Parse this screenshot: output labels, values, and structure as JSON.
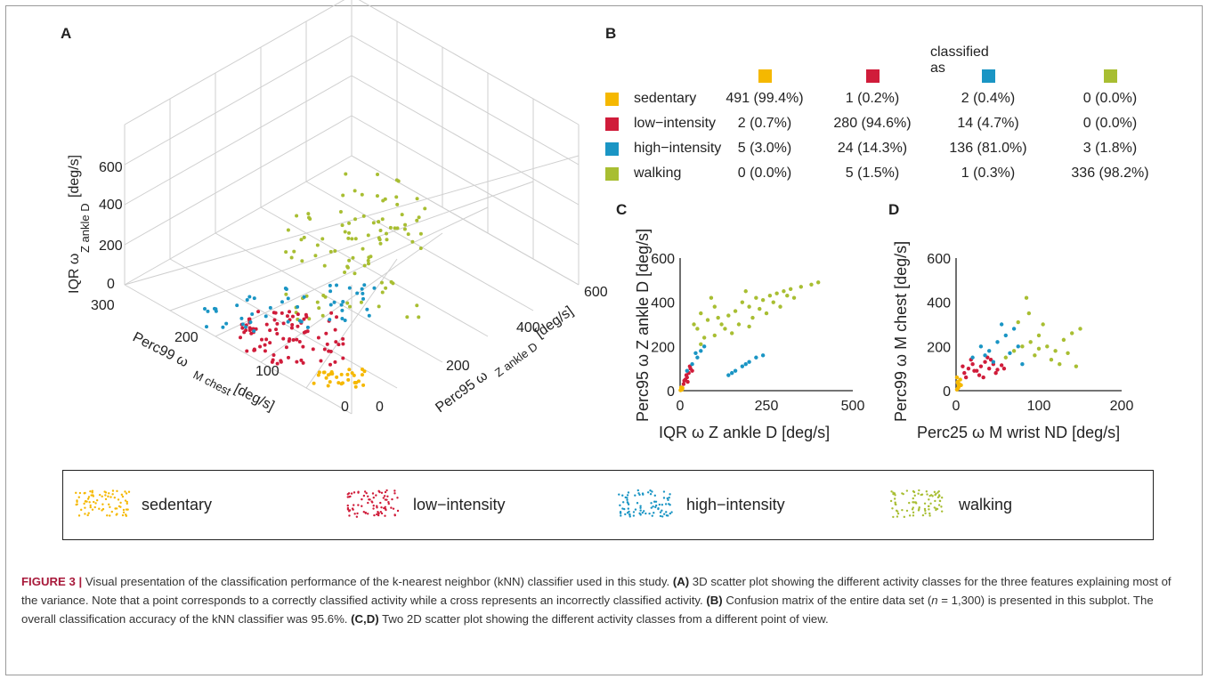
{
  "panels": {
    "a": "A",
    "b": "B",
    "c": "C",
    "d": "D"
  },
  "colors": {
    "sedentary": "#f5b800",
    "low_intensity": "#d01c3a",
    "high_intensity": "#1a95c4",
    "walking": "#a8be32"
  },
  "panel_a": {
    "zlabel": "IQR ω",
    "zlabel_sub": "Z ankle D",
    "zlabel_unit": "[deg/s]",
    "xlabel": "Perc99 ω",
    "xlabel_sub": "M chest",
    "xlabel_unit": "[deg/s]",
    "ylabel": "Perc95 ω",
    "ylabel_sub": "Z ankle D",
    "ylabel_unit": "[deg/s]",
    "zticks": [
      "600",
      "400",
      "200",
      "0"
    ],
    "xticks": [
      "300",
      "200",
      "100",
      "0"
    ],
    "yticks": [
      "0",
      "200",
      "400",
      "600"
    ]
  },
  "confusion_matrix": {
    "header": "classified as",
    "classes": [
      "sedentary",
      "low−intensity",
      "high−intensity",
      "walking"
    ],
    "rows": [
      [
        "491 (99.4%)",
        "1 (0.2%)",
        "2 (0.4%)",
        "0 (0.0%)"
      ],
      [
        "2 (0.7%)",
        "280 (94.6%)",
        "14 (4.7%)",
        "0 (0.0%)"
      ],
      [
        "5 (3.0%)",
        "24 (14.3%)",
        "136 (81.0%)",
        "3 (1.8%)"
      ],
      [
        "0 (0.0%)",
        "5 (1.5%)",
        "1 (0.3%)",
        "336 (98.2%)"
      ]
    ]
  },
  "chart_data": [
    {
      "type": "scatter",
      "panel": "C",
      "xlabel": "IQR ω Z ankle D [deg/s]",
      "ylabel": "Perc95 ω Z ankle D [deg/s]",
      "xlim": [
        0,
        500
      ],
      "ylim": [
        0,
        600
      ],
      "xticks": [
        "0",
        "250",
        "500"
      ],
      "yticks": [
        "0",
        "200",
        "400",
        "600"
      ],
      "series": [
        {
          "name": "sedentary",
          "points": [
            [
              2,
              3
            ],
            [
              4,
              6
            ],
            [
              3,
              10
            ],
            [
              6,
              8
            ],
            [
              1,
              2
            ],
            [
              5,
              4
            ],
            [
              7,
              12
            ],
            [
              3,
              15
            ]
          ]
        },
        {
          "name": "low−intensity",
          "points": [
            [
              10,
              30
            ],
            [
              15,
              50
            ],
            [
              20,
              60
            ],
            [
              25,
              80
            ],
            [
              30,
              100
            ],
            [
              12,
              45
            ],
            [
              18,
              70
            ],
            [
              22,
              40
            ],
            [
              35,
              90
            ],
            [
              28,
              110
            ]
          ]
        },
        {
          "name": "high−intensity",
          "points": [
            [
              20,
              90
            ],
            [
              35,
              120
            ],
            [
              50,
              150
            ],
            [
              60,
              180
            ],
            [
              140,
              70
            ],
            [
              160,
              90
            ],
            [
              180,
              110
            ],
            [
              200,
              130
            ],
            [
              220,
              150
            ],
            [
              240,
              160
            ],
            [
              150,
              80
            ],
            [
              190,
              120
            ],
            [
              45,
              170
            ],
            [
              70,
              200
            ]
          ]
        },
        {
          "name": "walking",
          "points": [
            [
              40,
              300
            ],
            [
              60,
              350
            ],
            [
              80,
              320
            ],
            [
              100,
              380
            ],
            [
              120,
              300
            ],
            [
              140,
              340
            ],
            [
              160,
              360
            ],
            [
              180,
              400
            ],
            [
              200,
              380
            ],
            [
              220,
              420
            ],
            [
              240,
              410
            ],
            [
              260,
              430
            ],
            [
              280,
              440
            ],
            [
              300,
              450
            ],
            [
              320,
              460
            ],
            [
              350,
              470
            ],
            [
              380,
              480
            ],
            [
              400,
              490
            ],
            [
              100,
              250
            ],
            [
              130,
              280
            ],
            [
              170,
              300
            ],
            [
              210,
              330
            ],
            [
              250,
              350
            ],
            [
              290,
              380
            ],
            [
              330,
              420
            ],
            [
              70,
              240
            ],
            [
              90,
              420
            ],
            [
              50,
              280
            ],
            [
              150,
              260
            ],
            [
              230,
              370
            ],
            [
              270,
              400
            ],
            [
              310,
              430
            ],
            [
              190,
              450
            ],
            [
              110,
              330
            ],
            [
              60,
              210
            ],
            [
              200,
              290
            ]
          ]
        }
      ]
    },
    {
      "type": "scatter",
      "panel": "D",
      "xlabel": "Perc25 ω M wrist ND [deg/s]",
      "ylabel": "Perc99 ω M chest [deg/s]",
      "xlim": [
        0,
        200
      ],
      "ylim": [
        0,
        600
      ],
      "xticks": [
        "0",
        "100",
        "200"
      ],
      "yticks": [
        "0",
        "200",
        "400",
        "600"
      ],
      "series": [
        {
          "name": "sedentary",
          "points": [
            [
              1,
              5
            ],
            [
              2,
              10
            ],
            [
              3,
              20
            ],
            [
              4,
              30
            ],
            [
              2,
              40
            ],
            [
              5,
              50
            ],
            [
              1,
              60
            ],
            [
              3,
              15
            ],
            [
              6,
              25
            ],
            [
              2,
              35
            ]
          ]
        },
        {
          "name": "low−intensity",
          "points": [
            [
              10,
              80
            ],
            [
              15,
              100
            ],
            [
              20,
              120
            ],
            [
              25,
              90
            ],
            [
              30,
              110
            ],
            [
              35,
              130
            ],
            [
              40,
              100
            ],
            [
              45,
              120
            ],
            [
              50,
              95
            ],
            [
              55,
              115
            ],
            [
              12,
              60
            ],
            [
              18,
              140
            ],
            [
              28,
              70
            ],
            [
              38,
              150
            ],
            [
              48,
              80
            ],
            [
              8,
              110
            ],
            [
              22,
              90
            ],
            [
              33,
              60
            ],
            [
              42,
              140
            ],
            [
              58,
              100
            ]
          ]
        },
        {
          "name": "high−intensity",
          "points": [
            [
              20,
              150
            ],
            [
              30,
              200
            ],
            [
              40,
              180
            ],
            [
              50,
              220
            ],
            [
              60,
              250
            ],
            [
              70,
              280
            ],
            [
              65,
              170
            ],
            [
              55,
              300
            ],
            [
              45,
              130
            ],
            [
              35,
              160
            ],
            [
              75,
              200
            ],
            [
              80,
              120
            ]
          ]
        },
        {
          "name": "walking",
          "points": [
            [
              60,
              150
            ],
            [
              70,
              180
            ],
            [
              80,
              200
            ],
            [
              90,
              220
            ],
            [
              100,
              250
            ],
            [
              110,
              200
            ],
            [
              120,
              180
            ],
            [
              130,
              230
            ],
            [
              140,
              260
            ],
            [
              150,
              280
            ],
            [
              85,
              420
            ],
            [
              95,
              160
            ],
            [
              105,
              300
            ],
            [
              115,
              140
            ],
            [
              125,
              120
            ],
            [
              135,
              170
            ],
            [
              145,
              110
            ],
            [
              75,
              310
            ],
            [
              88,
              350
            ],
            [
              100,
              190
            ]
          ]
        }
      ]
    }
  ],
  "legend": [
    "sedentary",
    "low−intensity",
    "high−intensity",
    "walking"
  ],
  "caption": {
    "label": "FIGURE 3 |",
    "t1": "Visual presentation of the classification performance of the k-nearest neighbor (kNN) classifier used in this study.",
    "a": "(A)",
    "t2": "3D scatter plot showing the different activity classes for the three features explaining most of the variance. Note that a point corresponds to a correctly classified activity while a cross represents an incorrectly classified activity.",
    "b": "(B)",
    "t3": "Confusion matrix of the entire data set (",
    "n": "n",
    "t4": "= 1,300) is presented in this subplot. The overall classification accuracy of the kNN classifier was 95.6%.",
    "cd": "(C,D)",
    "t5": "Two 2D scatter plot showing the different activity classes from a different point of view."
  }
}
